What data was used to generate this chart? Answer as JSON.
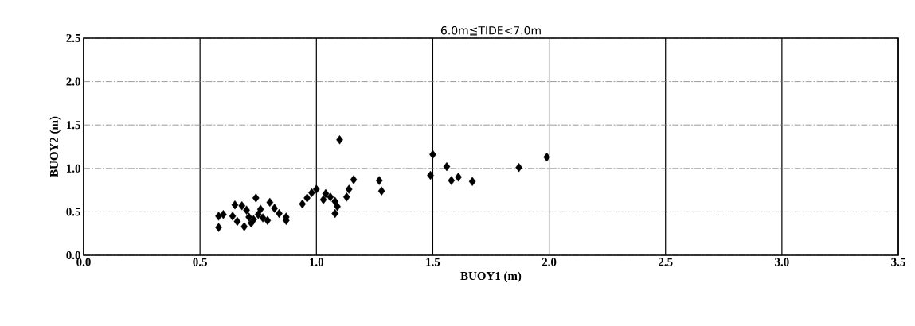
{
  "chart_data": {
    "type": "scatter",
    "title": "6.0m≦TIDE<7.0m",
    "xlabel": "BUOY1 (m)",
    "ylabel": "BUOY2 (m)",
    "xlim": [
      0,
      3.5
    ],
    "ylim": [
      0,
      2.5
    ],
    "xticks": [
      {
        "value": 0,
        "label": "0.0"
      },
      {
        "value": 0.5,
        "label": "0.5"
      },
      {
        "value": 1,
        "label": "1.0"
      },
      {
        "value": 1.5,
        "label": "1.5"
      },
      {
        "value": 2,
        "label": "2.0"
      },
      {
        "value": 2.5,
        "label": "2.5"
      },
      {
        "value": 3,
        "label": "3.0"
      },
      {
        "value": 3.5,
        "label": "3.5"
      }
    ],
    "yticks": [
      {
        "value": 0,
        "label": "0.0"
      },
      {
        "value": 0.5,
        "label": "0.5"
      },
      {
        "value": 1,
        "label": "1.0"
      },
      {
        "value": 1.5,
        "label": "1.5"
      },
      {
        "value": 2,
        "label": "2.0"
      },
      {
        "value": 2.5,
        "label": "2.5"
      }
    ],
    "grid": true,
    "marker": "diamond",
    "series": [
      {
        "color": "#000000",
        "x": [
          0.58,
          0.58,
          0.6,
          0.64,
          0.65,
          0.66,
          0.68,
          0.69,
          0.7,
          0.71,
          0.72,
          0.73,
          0.74,
          0.75,
          0.76,
          0.77,
          0.79,
          0.8,
          0.82,
          0.84,
          0.87,
          0.87,
          0.94,
          0.96,
          0.98,
          1.0,
          1.03,
          1.04,
          1.06,
          1.08,
          1.08,
          1.09,
          1.1,
          1.13,
          1.14,
          1.16,
          1.27,
          1.28,
          1.49,
          1.5,
          1.56,
          1.58,
          1.61,
          1.67,
          1.87,
          1.99
        ],
        "values": [
          0.45,
          0.32,
          0.47,
          0.45,
          0.58,
          0.39,
          0.57,
          0.33,
          0.52,
          0.44,
          0.37,
          0.41,
          0.66,
          0.47,
          0.53,
          0.43,
          0.4,
          0.61,
          0.54,
          0.48,
          0.44,
          0.4,
          0.59,
          0.66,
          0.72,
          0.76,
          0.64,
          0.71,
          0.67,
          0.62,
          0.48,
          0.56,
          1.33,
          0.67,
          0.76,
          0.87,
          0.86,
          0.74,
          0.92,
          1.16,
          1.02,
          0.86,
          0.9,
          0.85,
          1.01,
          1.13
        ]
      }
    ]
  }
}
